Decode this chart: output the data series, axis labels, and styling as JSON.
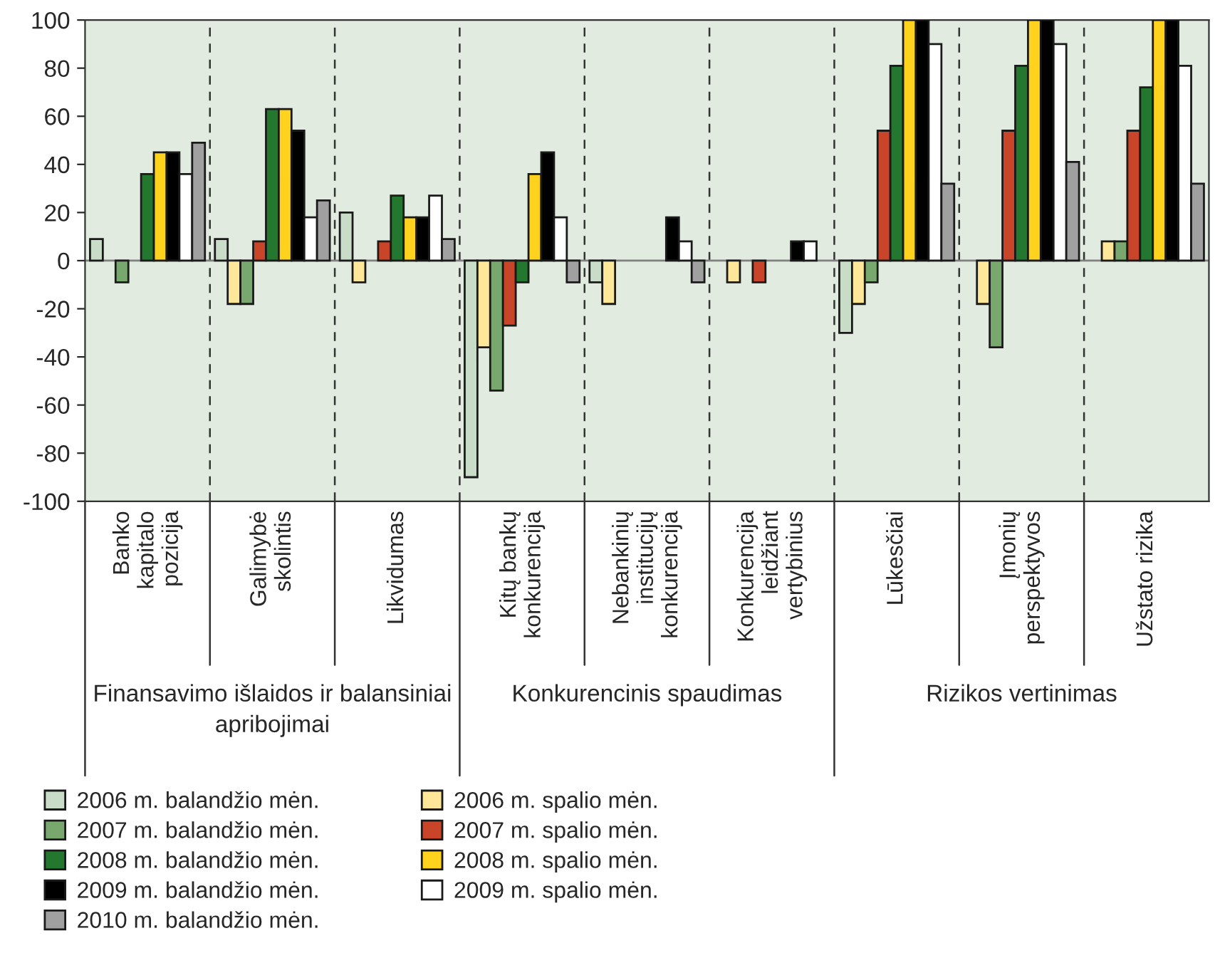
{
  "chart_data": {
    "type": "bar",
    "categories": [
      "Banko\nkapitalo\npozicija",
      "Galimybė\nskolintis",
      "Likvidumas",
      "Kitų bankų\nkonkurencija",
      "Nebankinių\ninstitucijų\nkonkurencija",
      "Konkurencija\nleidžiant\nvertybinius",
      "Lūkesčiai",
      "Įmonių\nperspektyvos",
      "Užstato rizika"
    ],
    "annotations": [
      "Finansavimo išlaidos ir balansiniai\napribojimai",
      "Konkurencinis spaudimas",
      "Rizikos vertinimas"
    ],
    "series": [
      {
        "name": "2006 m. balandžio mėn.",
        "color": "#c8dcc8",
        "values": [
          9,
          9,
          20,
          -90,
          -9,
          null,
          -30,
          null,
          null
        ]
      },
      {
        "name": "2006 m. spalio mėn.",
        "color": "#ffe79a",
        "values": [
          null,
          -18,
          -9,
          -36,
          -18,
          -9,
          -18,
          -18,
          8
        ]
      },
      {
        "name": "2007 m. balandžio mėn.",
        "color": "#78a86e",
        "values": [
          -9,
          -18,
          null,
          -54,
          null,
          null,
          -9,
          -36,
          8
        ]
      },
      {
        "name": "2007 m. spalio mėn.",
        "color": "#c8452a",
        "values": [
          null,
          8,
          8,
          -27,
          null,
          -9,
          54,
          54,
          54
        ]
      },
      {
        "name": "2008 m. balandžio mėn.",
        "color": "#23772f",
        "values": [
          36,
          63,
          27,
          -9,
          null,
          null,
          81,
          81,
          72
        ]
      },
      {
        "name": "2008 m. spalio mėn.",
        "color": "#ffd21e",
        "values": [
          45,
          63,
          18,
          36,
          null,
          null,
          100,
          100,
          100
        ]
      },
      {
        "name": "2009 m. balandžio mėn.",
        "color": "#000000",
        "values": [
          45,
          54,
          18,
          45,
          18,
          8,
          100,
          100,
          100
        ]
      },
      {
        "name": "2009 m. spalio mėn.",
        "color": "#ffffff",
        "values": [
          36,
          18,
          27,
          18,
          8,
          8,
          90,
          90,
          81
        ]
      },
      {
        "name": "2010 m. balandžio mėn.",
        "color": "#a0a0a0",
        "values": [
          49,
          25,
          9,
          -9,
          -9,
          null,
          32,
          41,
          32
        ]
      }
    ],
    "ylim": [
      -100,
      100
    ],
    "yticks": [
      -100,
      -80,
      -60,
      -40,
      -20,
      0,
      20,
      40,
      60,
      80,
      100
    ],
    "ref_lines": [
      {
        "axis": "y",
        "value": 0,
        "color": "#808080"
      }
    ],
    "grid": "x",
    "legend": "bottom"
  }
}
